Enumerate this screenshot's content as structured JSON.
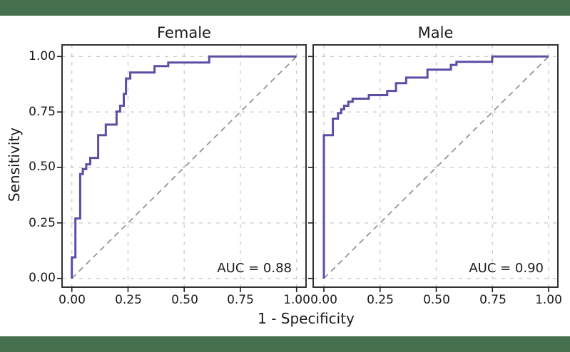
{
  "figure": {
    "xlabel": "1 - Specificity",
    "ylabel": "Sensitivity",
    "colors": {
      "band": "#47704f",
      "curve": "#5a4fa5",
      "diagonal": "#909090",
      "grid": "#cbcbcb",
      "spine": "#1c1c1c",
      "text": "#1a1a1a",
      "background": "#ffffff"
    }
  },
  "chart_data": {
    "type": "line",
    "subtype": "roc-step-curves",
    "xlabel": "1 - Specificity",
    "ylabel": "Sensitivity",
    "xlim": [
      0,
      1
    ],
    "ylim": [
      0,
      1
    ],
    "grid": true,
    "tick_values": [
      0,
      0.25,
      0.5,
      0.75,
      1.0
    ],
    "x_ticks": [
      "0.00",
      "0.25",
      "0.50",
      "0.75",
      "1.00"
    ],
    "y_ticks": [
      "1.00",
      "0.75",
      "0.50",
      "0.25",
      "0.00"
    ],
    "panels": [
      {
        "title": "Female",
        "auc": 0.88,
        "auc_label": "AUC = 0.88",
        "diagonal": [
          [
            0,
            0
          ],
          [
            1,
            1
          ]
        ],
        "roc_points": [
          [
            0,
            0
          ],
          [
            0,
            0.095
          ],
          [
            0.016,
            0.095
          ],
          [
            0.016,
            0.27
          ],
          [
            0.037,
            0.27
          ],
          [
            0.037,
            0.47
          ],
          [
            0.049,
            0.47
          ],
          [
            0.049,
            0.493
          ],
          [
            0.064,
            0.493
          ],
          [
            0.064,
            0.514
          ],
          [
            0.082,
            0.514
          ],
          [
            0.082,
            0.543
          ],
          [
            0.117,
            0.543
          ],
          [
            0.117,
            0.645
          ],
          [
            0.151,
            0.645
          ],
          [
            0.151,
            0.693
          ],
          [
            0.199,
            0.693
          ],
          [
            0.199,
            0.752
          ],
          [
            0.215,
            0.752
          ],
          [
            0.215,
            0.778
          ],
          [
            0.231,
            0.778
          ],
          [
            0.231,
            0.832
          ],
          [
            0.241,
            0.832
          ],
          [
            0.241,
            0.901
          ],
          [
            0.26,
            0.901
          ],
          [
            0.26,
            0.928
          ],
          [
            0.368,
            0.928
          ],
          [
            0.368,
            0.957
          ],
          [
            0.429,
            0.957
          ],
          [
            0.429,
            0.973
          ],
          [
            0.611,
            0.973
          ],
          [
            0.611,
            1
          ],
          [
            1,
            1
          ]
        ]
      },
      {
        "title": "Male",
        "auc": 0.9,
        "auc_label": "AUC = 0.90",
        "diagonal": [
          [
            0,
            0
          ],
          [
            1,
            1
          ]
        ],
        "roc_points": [
          [
            0,
            0
          ],
          [
            0,
            0.645
          ],
          [
            0.04,
            0.645
          ],
          [
            0.04,
            0.72
          ],
          [
            0.063,
            0.72
          ],
          [
            0.063,
            0.745
          ],
          [
            0.077,
            0.745
          ],
          [
            0.077,
            0.762
          ],
          [
            0.09,
            0.762
          ],
          [
            0.09,
            0.778
          ],
          [
            0.109,
            0.778
          ],
          [
            0.109,
            0.796
          ],
          [
            0.128,
            0.796
          ],
          [
            0.128,
            0.81
          ],
          [
            0.2,
            0.81
          ],
          [
            0.2,
            0.826
          ],
          [
            0.282,
            0.826
          ],
          [
            0.282,
            0.845
          ],
          [
            0.321,
            0.845
          ],
          [
            0.321,
            0.88
          ],
          [
            0.366,
            0.88
          ],
          [
            0.366,
            0.905
          ],
          [
            0.461,
            0.905
          ],
          [
            0.461,
            0.941
          ],
          [
            0.565,
            0.941
          ],
          [
            0.565,
            0.962
          ],
          [
            0.59,
            0.962
          ],
          [
            0.59,
            0.976
          ],
          [
            0.749,
            0.976
          ],
          [
            0.749,
            1
          ],
          [
            1,
            1
          ]
        ]
      }
    ]
  }
}
